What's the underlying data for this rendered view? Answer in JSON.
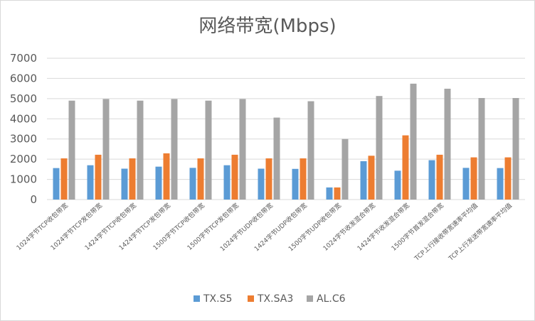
{
  "chart_data": {
    "type": "bar",
    "title": "网络带宽(Mbps)",
    "xlabel": "",
    "ylabel": "",
    "ylim": [
      0,
      7000
    ],
    "yticks": [
      0,
      1000,
      2000,
      3000,
      4000,
      5000,
      6000,
      7000
    ],
    "grid": true,
    "legend_position": "bottom",
    "categories": [
      "1024字节TCP收包带宽",
      "1024字节TCP发包带宽",
      "1424字节TCP收包带宽",
      "1424字节TCP发包带宽",
      "1500字节TCP收包带宽",
      "1500字节TCP发包带宽",
      "1024字节UDP收包带宽",
      "1424字节UDP收包带宽",
      "1500字节UDP收包带宽",
      "1024字节收发混合带宽",
      "1424字节收发混合带宽",
      "1500字节首发混合带宽",
      "TCP上行接收带宽速率平均值",
      "TCP上行发送带宽速率平均值"
    ],
    "series": [
      {
        "name": "TX.S5",
        "color": "#5b9bd5",
        "values": [
          1560,
          1700,
          1530,
          1630,
          1570,
          1700,
          1530,
          1520,
          600,
          1900,
          1430,
          1950,
          1570,
          1560
        ]
      },
      {
        "name": "TX.SA3",
        "color": "#ed7d31",
        "values": [
          2040,
          2220,
          2040,
          2290,
          2040,
          2220,
          2040,
          2040,
          600,
          2170,
          3180,
          2220,
          2090,
          2090
        ]
      },
      {
        "name": "AL.C6",
        "color": "#a5a5a5",
        "values": [
          4900,
          4980,
          4900,
          4980,
          4900,
          4980,
          4060,
          4870,
          3000,
          5130,
          5740,
          5490,
          5030,
          5030
        ]
      }
    ]
  },
  "colors": {
    "grid": "#d9d9d9",
    "axis_text": "#595959"
  }
}
